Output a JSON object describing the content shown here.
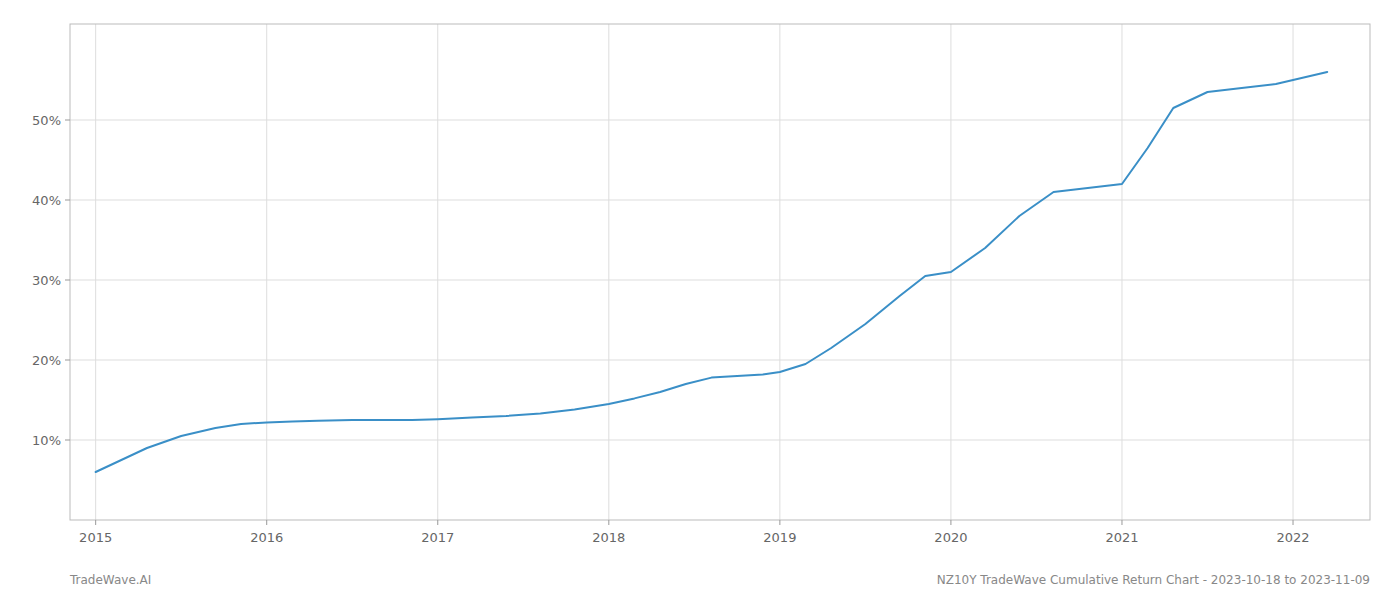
{
  "chart_data": {
    "type": "line",
    "x": [
      2015.0,
      2015.15,
      2015.3,
      2015.5,
      2015.7,
      2015.85,
      2016.0,
      2016.15,
      2016.3,
      2016.5,
      2016.7,
      2016.85,
      2017.0,
      2017.2,
      2017.4,
      2017.6,
      2017.8,
      2018.0,
      2018.15,
      2018.3,
      2018.45,
      2018.6,
      2018.75,
      2018.9,
      2019.0,
      2019.15,
      2019.3,
      2019.5,
      2019.7,
      2019.85,
      2020.0,
      2020.2,
      2020.4,
      2020.6,
      2020.8,
      2021.0,
      2021.15,
      2021.3,
      2021.5,
      2021.7,
      2021.9,
      2022.0,
      2022.2
    ],
    "values": [
      6.0,
      7.5,
      9.0,
      10.5,
      11.5,
      12.0,
      12.2,
      12.3,
      12.4,
      12.5,
      12.5,
      12.5,
      12.6,
      12.8,
      13.0,
      13.3,
      13.8,
      14.5,
      15.2,
      16.0,
      17.0,
      17.8,
      18.0,
      18.2,
      18.5,
      19.5,
      21.5,
      24.5,
      28.0,
      30.5,
      31.0,
      34.0,
      38.0,
      41.0,
      41.5,
      42.0,
      46.5,
      51.5,
      53.5,
      54.0,
      54.5,
      55.0,
      56.0
    ],
    "color": "#3a8fc7",
    "xlim": [
      2014.85,
      2022.45
    ],
    "ylim": [
      0,
      62
    ],
    "xticks": [
      2015,
      2016,
      2017,
      2018,
      2019,
      2020,
      2021,
      2022
    ],
    "yticks": [
      {
        "value": 10,
        "label": "10%"
      },
      {
        "value": 20,
        "label": "20%"
      },
      {
        "value": 30,
        "label": "30%"
      },
      {
        "value": 40,
        "label": "40%"
      },
      {
        "value": 50,
        "label": "50%"
      }
    ],
    "grid": true,
    "annotations": [
      "TradeWave.AI",
      "NZ10Y TradeWave Cumulative Return Chart - 2023-10-18 to 2023-11-09"
    ]
  }
}
